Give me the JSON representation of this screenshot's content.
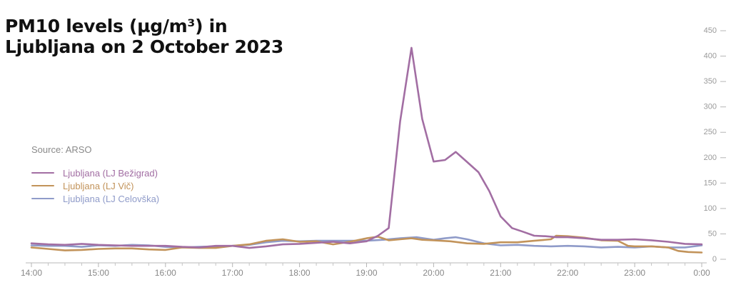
{
  "chart_data": {
    "type": "line",
    "title": "PM10 levels (µg/m³) in Ljubljana on 2 October 2023",
    "title_lines": [
      "PM10 levels (µg/m³) in",
      "Ljubljana on 2 October 2023"
    ],
    "source": "Source: ARSO",
    "x_ticks": [
      "14:00",
      "15:00",
      "16:00",
      "17:00",
      "18:00",
      "19:00",
      "20:00",
      "21:00",
      "22:00",
      "23:00",
      "0:00"
    ],
    "y_ticks": [
      "0",
      "50",
      "100",
      "150",
      "200",
      "250",
      "300",
      "350",
      "400",
      "450"
    ],
    "xlim": [
      14,
      24
    ],
    "ylim": [
      0,
      450
    ],
    "y_axis_position": "right",
    "legend_position": "left",
    "grid": false,
    "series": [
      {
        "name": "Ljubljana (LJ Bežigrad)",
        "color": "#a26ea3",
        "points": [
          [
            14.0,
            30
          ],
          [
            14.25,
            28
          ],
          [
            14.5,
            27
          ],
          [
            14.75,
            29
          ],
          [
            15.0,
            27
          ],
          [
            15.25,
            26
          ],
          [
            15.5,
            25
          ],
          [
            15.75,
            25
          ],
          [
            16.0,
            25
          ],
          [
            16.25,
            23
          ],
          [
            16.5,
            22
          ],
          [
            16.75,
            25
          ],
          [
            17.0,
            25
          ],
          [
            17.25,
            21
          ],
          [
            17.5,
            24
          ],
          [
            17.75,
            28
          ],
          [
            18.0,
            29
          ],
          [
            18.25,
            31
          ],
          [
            18.5,
            33
          ],
          [
            18.75,
            30
          ],
          [
            19.0,
            34
          ],
          [
            19.17,
            45
          ],
          [
            19.33,
            60
          ],
          [
            19.5,
            270
          ],
          [
            19.67,
            415
          ],
          [
            19.83,
            275
          ],
          [
            20.0,
            191
          ],
          [
            20.17,
            194
          ],
          [
            20.33,
            210
          ],
          [
            20.5,
            190
          ],
          [
            20.67,
            170
          ],
          [
            20.83,
            133
          ],
          [
            21.0,
            83
          ],
          [
            21.17,
            60
          ],
          [
            21.33,
            53
          ],
          [
            21.5,
            45
          ],
          [
            21.67,
            44
          ],
          [
            21.83,
            42
          ],
          [
            22.0,
            42
          ],
          [
            22.25,
            40
          ],
          [
            22.5,
            37
          ],
          [
            22.75,
            37
          ],
          [
            23.0,
            38
          ],
          [
            23.25,
            36
          ],
          [
            23.5,
            33
          ],
          [
            23.75,
            29
          ],
          [
            24.0,
            28
          ]
        ]
      },
      {
        "name": "Ljubljana (LJ Vič)",
        "color": "#c2935a",
        "points": [
          [
            14.0,
            22
          ],
          [
            14.25,
            19
          ],
          [
            14.5,
            16
          ],
          [
            14.75,
            17
          ],
          [
            15.0,
            19
          ],
          [
            15.25,
            20
          ],
          [
            15.5,
            20
          ],
          [
            15.75,
            18
          ],
          [
            16.0,
            17
          ],
          [
            16.25,
            22
          ],
          [
            16.5,
            21
          ],
          [
            16.75,
            21
          ],
          [
            17.0,
            25
          ],
          [
            17.25,
            28
          ],
          [
            17.5,
            35
          ],
          [
            17.75,
            38
          ],
          [
            18.0,
            33
          ],
          [
            18.25,
            34
          ],
          [
            18.5,
            28
          ],
          [
            18.75,
            33
          ],
          [
            19.0,
            40
          ],
          [
            19.17,
            43
          ],
          [
            19.33,
            36
          ],
          [
            19.5,
            38
          ],
          [
            19.67,
            40
          ],
          [
            19.83,
            37
          ],
          [
            20.0,
            36
          ],
          [
            20.25,
            34
          ],
          [
            20.5,
            30
          ],
          [
            20.75,
            29
          ],
          [
            21.0,
            32
          ],
          [
            21.25,
            32
          ],
          [
            21.5,
            35
          ],
          [
            21.75,
            38
          ],
          [
            21.83,
            45
          ],
          [
            22.0,
            44
          ],
          [
            22.25,
            41
          ],
          [
            22.5,
            36
          ],
          [
            22.75,
            35
          ],
          [
            22.9,
            25
          ],
          [
            23.0,
            24
          ],
          [
            23.25,
            24
          ],
          [
            23.5,
            22
          ],
          [
            23.65,
            15
          ],
          [
            23.8,
            13
          ],
          [
            24.0,
            12
          ]
        ]
      },
      {
        "name": "Ljubljana (LJ Celovška)",
        "color": "#8f9bc9",
        "points": [
          [
            14.0,
            26
          ],
          [
            14.25,
            25
          ],
          [
            14.5,
            25
          ],
          [
            14.75,
            23
          ],
          [
            15.0,
            26
          ],
          [
            15.25,
            25
          ],
          [
            15.5,
            27
          ],
          [
            15.75,
            26
          ],
          [
            16.0,
            23
          ],
          [
            16.25,
            22
          ],
          [
            16.5,
            23
          ],
          [
            16.75,
            24
          ],
          [
            17.0,
            25
          ],
          [
            17.25,
            27
          ],
          [
            17.5,
            32
          ],
          [
            17.75,
            35
          ],
          [
            18.0,
            34
          ],
          [
            18.25,
            35
          ],
          [
            18.5,
            35
          ],
          [
            18.75,
            35
          ],
          [
            19.0,
            35
          ],
          [
            19.25,
            37
          ],
          [
            19.5,
            40
          ],
          [
            19.75,
            42
          ],
          [
            20.0,
            37
          ],
          [
            20.17,
            40
          ],
          [
            20.33,
            42
          ],
          [
            20.5,
            38
          ],
          [
            20.75,
            30
          ],
          [
            21.0,
            26
          ],
          [
            21.25,
            27
          ],
          [
            21.5,
            25
          ],
          [
            21.75,
            24
          ],
          [
            22.0,
            25
          ],
          [
            22.25,
            24
          ],
          [
            22.5,
            22
          ],
          [
            22.75,
            23
          ],
          [
            23.0,
            22
          ],
          [
            23.25,
            24
          ],
          [
            23.5,
            22
          ],
          [
            23.75,
            22
          ],
          [
            24.0,
            26
          ]
        ]
      }
    ]
  }
}
